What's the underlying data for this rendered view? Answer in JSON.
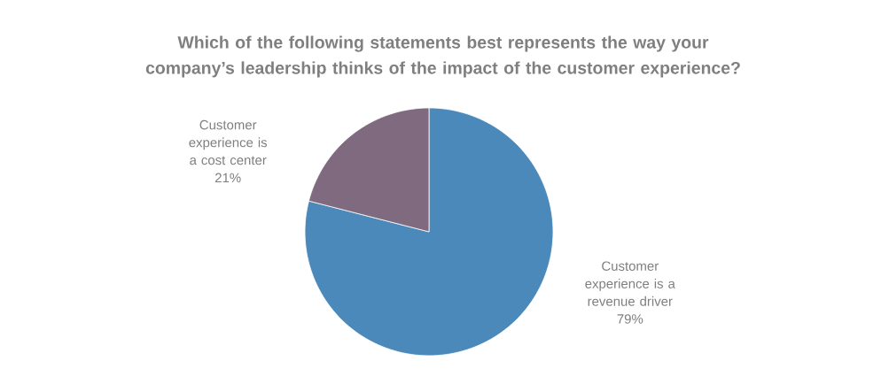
{
  "chart_data": {
    "type": "pie",
    "title": "Which of the following statements best represents the way your company’s leadership thinks of the impact of the customer experience?",
    "categories": [
      "Customer experience is a revenue driver",
      "Customer experience is a cost center"
    ],
    "values": [
      79,
      21
    ],
    "value_labels": [
      "79%",
      "21%"
    ],
    "colors": [
      "#4a89b9",
      "#7f6a80"
    ]
  }
}
